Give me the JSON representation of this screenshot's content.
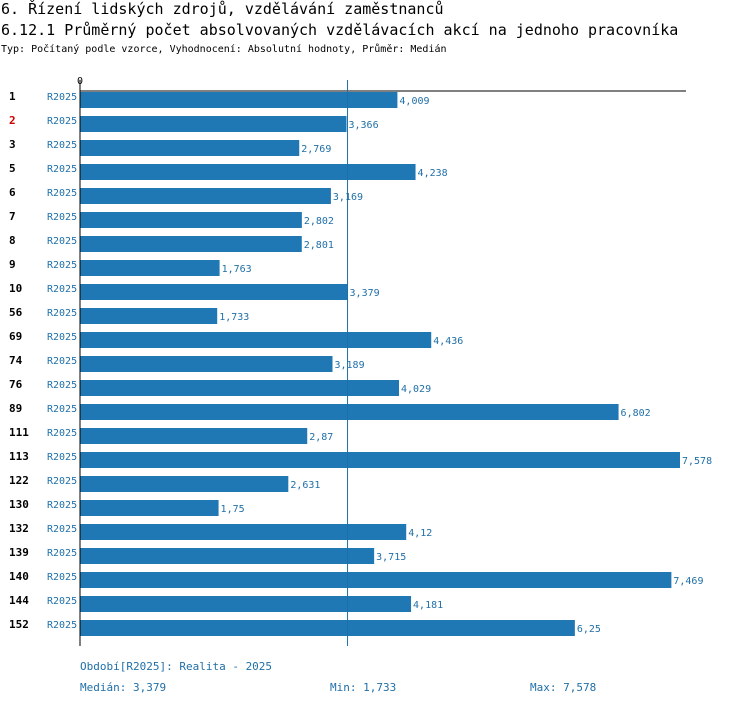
{
  "header": {
    "title": "6. Řízení lidských zdrojů, vzdělávání zaměstnanců",
    "chart_title": "6.12.1 Průměrný počet absolvovaných vzdělávacích akcí na jednoho pracovníka",
    "subtitle": "Typ: Počítaný podle vzorce, Vyhodnocení: Absolutní hodnoty, Průměr: Medián"
  },
  "chart_data": {
    "type": "bar",
    "orientation": "horizontal",
    "title": "6.12.1 Průměrný počet absolvovaných vzdělávacích akcí na jednoho pracovníka",
    "categories": [
      "1",
      "2",
      "3",
      "5",
      "6",
      "7",
      "8",
      "9",
      "10",
      "56",
      "69",
      "74",
      "76",
      "89",
      "111",
      "113",
      "122",
      "130",
      "132",
      "139",
      "140",
      "144",
      "152"
    ],
    "series_label": "R2025",
    "values": [
      4.009,
      3.366,
      2.769,
      4.238,
      3.169,
      2.802,
      2.801,
      1.763,
      3.379,
      1.733,
      4.436,
      3.189,
      4.029,
      6.802,
      2.87,
      7.578,
      2.631,
      1.75,
      4.12,
      3.715,
      7.469,
      4.181,
      6.25
    ],
    "value_labels": [
      "4,009",
      "3,366",
      "2,769",
      "4,238",
      "3,169",
      "2,802",
      "2,801",
      "1,763",
      "3,379",
      "1,733",
      "4,436",
      "3,189",
      "4,029",
      "6,802",
      "2,87",
      "7,578",
      "2,631",
      "1,75",
      "4,12",
      "3,715",
      "7,469",
      "4,181",
      "6,25"
    ],
    "highlighted_category": "2",
    "axis_tick_label": "0",
    "xlim": [
      0,
      7.578
    ],
    "median": 3.379,
    "colors": {
      "bar": "#1f77b4",
      "label": "#1f6fa8",
      "highlight": "#cc0000",
      "axis": "#000000"
    }
  },
  "footer": {
    "period": "Období[R2025]: Realita - 2025",
    "median": "Medián: 3,379",
    "min": "Min: 1,733",
    "max": "Max: 7,578"
  }
}
